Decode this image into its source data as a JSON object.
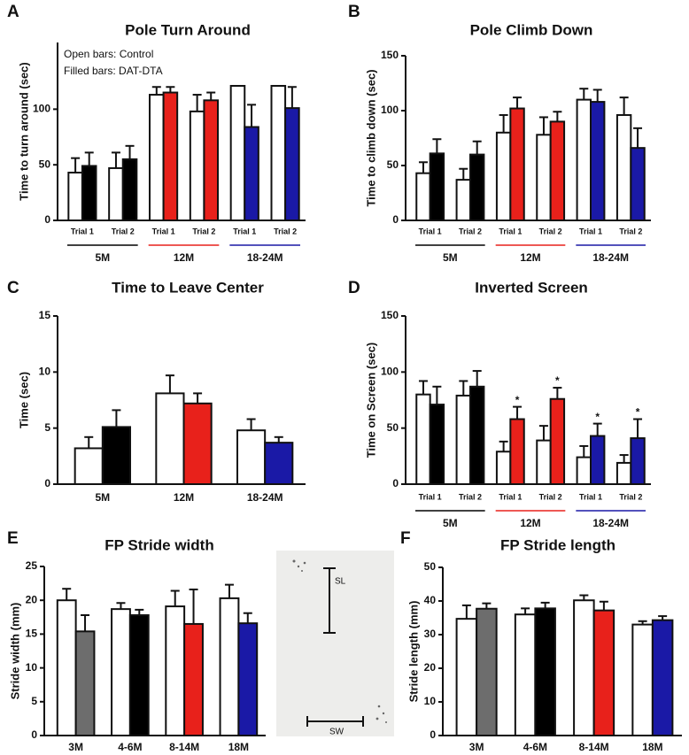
{
  "chart_data": [
    {
      "type": "bar",
      "panel": "A",
      "title": "Pole Turn Around",
      "ylabel": "Time to turn around (sec)",
      "annotations": [
        "Open bars: Control",
        "Filled bars: DAT-DTA"
      ],
      "ylim": [
        0,
        160
      ],
      "yticks": [
        0,
        50,
        100
      ],
      "groups": [
        {
          "label": "5M",
          "color": "#000000",
          "categories": [
            "Trial 1",
            "Trial 2"
          ]
        },
        {
          "label": "12M",
          "color": "#e8211b",
          "categories": [
            "Trial 1",
            "Trial 2"
          ]
        },
        {
          "label": "18-24M",
          "color": "#1a19a6",
          "categories": [
            "Trial 1",
            "Trial 2"
          ]
        }
      ],
      "series": [
        {
          "fill": "#ffffff",
          "values": [
            43,
            47,
            113,
            98,
            121,
            121
          ],
          "errors": [
            13,
            14,
            7,
            15,
            0,
            0
          ]
        },
        {
          "colors": [
            "#000000",
            "#000000",
            "#e8211b",
            "#e8211b",
            "#1a19a6",
            "#1a19a6"
          ],
          "values": [
            49,
            55,
            115,
            108,
            84,
            101
          ],
          "errors": [
            12,
            12,
            5,
            7,
            20,
            19
          ]
        }
      ]
    },
    {
      "type": "bar",
      "panel": "B",
      "title": "Pole Climb Down",
      "ylabel": "Time to climb down (sec)",
      "ylim": [
        0,
        150
      ],
      "yticks": [
        0,
        50,
        100,
        150
      ],
      "groups": [
        {
          "label": "5M",
          "color": "#000000",
          "categories": [
            "Trial 1",
            "Trial 2"
          ]
        },
        {
          "label": "12M",
          "color": "#e8211b",
          "categories": [
            "Trial 1",
            "Trial 2"
          ]
        },
        {
          "label": "18-24M",
          "color": "#1a19a6",
          "categories": [
            "Trial 1",
            "Trial 2"
          ]
        }
      ],
      "series": [
        {
          "fill": "#ffffff",
          "values": [
            43,
            37,
            80,
            78,
            110,
            96
          ],
          "errors": [
            10,
            10,
            16,
            16,
            10,
            16
          ]
        },
        {
          "colors": [
            "#000000",
            "#000000",
            "#e8211b",
            "#e8211b",
            "#1a19a6",
            "#1a19a6"
          ],
          "values": [
            61,
            60,
            102,
            90,
            108,
            66
          ],
          "errors": [
            13,
            12,
            10,
            9,
            11,
            18
          ]
        }
      ]
    },
    {
      "type": "bar",
      "panel": "C",
      "title": "Time to Leave Center",
      "ylabel": "Time (sec)",
      "ylim": [
        0,
        15
      ],
      "yticks": [
        0,
        5,
        10,
        15
      ],
      "categories": [
        "5M",
        "12M",
        "18-24M"
      ],
      "series": [
        {
          "fill": "#ffffff",
          "values": [
            3.2,
            8.1,
            4.8
          ],
          "errors": [
            1.0,
            1.6,
            1.0
          ]
        },
        {
          "colors": [
            "#000000",
            "#e8211b",
            "#1a19a6"
          ],
          "values": [
            5.1,
            7.2,
            3.7
          ],
          "errors": [
            1.5,
            0.9,
            0.5
          ]
        }
      ]
    },
    {
      "type": "bar",
      "panel": "D",
      "title": "Inverted Screen",
      "ylabel": "Time on Screen (sec)",
      "ylim": [
        0,
        150
      ],
      "yticks": [
        0,
        50,
        100,
        150
      ],
      "groups": [
        {
          "label": "5M",
          "color": "#000000",
          "categories": [
            "Trial 1",
            "Trial 2"
          ]
        },
        {
          "label": "12M",
          "color": "#e8211b",
          "categories": [
            "Trial 1",
            "Trial 2"
          ]
        },
        {
          "label": "18-24M",
          "color": "#1a19a6",
          "categories": [
            "Trial 1",
            "Trial 2"
          ]
        }
      ],
      "series": [
        {
          "fill": "#ffffff",
          "values": [
            80,
            79,
            29,
            39,
            24,
            19
          ],
          "errors": [
            12,
            13,
            9,
            13,
            10,
            7
          ]
        },
        {
          "colors": [
            "#000000",
            "#000000",
            "#e8211b",
            "#e8211b",
            "#1a19a6",
            "#1a19a6"
          ],
          "values": [
            71,
            87,
            58,
            76,
            43,
            41
          ],
          "errors": [
            16,
            14,
            11,
            10,
            11,
            17
          ],
          "marks": [
            null,
            null,
            "*",
            "*",
            "*",
            "*"
          ]
        }
      ]
    },
    {
      "type": "bar",
      "panel": "E",
      "title": "FP Stride width",
      "ylabel": "Stride width (mm)",
      "ylim": [
        0,
        25
      ],
      "yticks": [
        0,
        5,
        10,
        15,
        20,
        25
      ],
      "categories": [
        "3M",
        "4-6M",
        "8-14M",
        "18M"
      ],
      "series": [
        {
          "fill": "#ffffff",
          "values": [
            20.0,
            18.7,
            19.1,
            20.3
          ],
          "errors": [
            1.7,
            0.9,
            2.3,
            2.0
          ]
        },
        {
          "colors": [
            "#6d6d6d",
            "#000000",
            "#e8211b",
            "#1a19a6"
          ],
          "values": [
            15.4,
            17.8,
            16.5,
            16.6
          ],
          "errors": [
            2.4,
            0.8,
            5.1,
            1.5
          ]
        }
      ]
    },
    {
      "type": "bar",
      "panel": "F",
      "title": "FP Stride length",
      "ylabel": "Stride length (mm)",
      "ylim": [
        0,
        50
      ],
      "yticks": [
        0,
        10,
        20,
        30,
        40,
        50
      ],
      "categories": [
        "3M",
        "4-6M",
        "8-14M",
        "18M"
      ],
      "series": [
        {
          "fill": "#ffffff",
          "values": [
            34.7,
            36,
            40.2,
            33
          ],
          "errors": [
            4,
            1.8,
            1.5,
            1
          ]
        },
        {
          "colors": [
            "#6d6d6d",
            "#000000",
            "#e8211b",
            "#1a19a6"
          ],
          "values": [
            37.7,
            37.8,
            37.2,
            34.3
          ],
          "errors": [
            1.6,
            1.7,
            2.6,
            1.2
          ]
        }
      ]
    }
  ],
  "inset": {
    "sl": "SL",
    "sw": "SW"
  }
}
